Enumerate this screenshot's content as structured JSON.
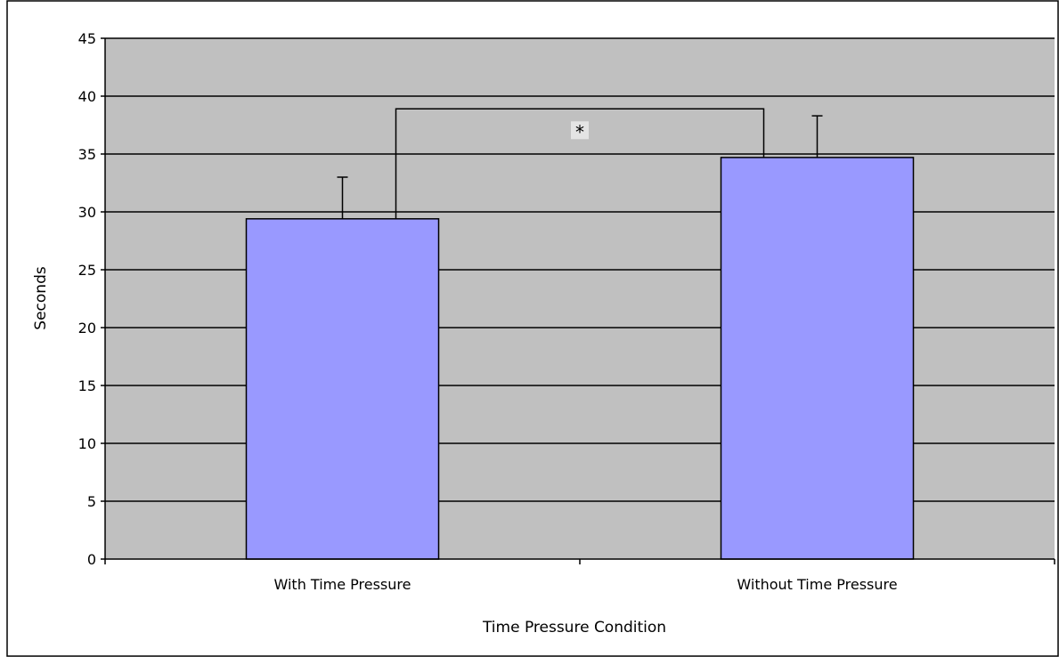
{
  "chart_data": {
    "type": "bar",
    "title": "",
    "xlabel": "Time Pressure Condition",
    "ylabel": "Seconds",
    "categories": [
      "With Time Pressure",
      "Without Time Pressure"
    ],
    "series": [
      {
        "values": [
          29.4,
          34.7
        ],
        "error": [
          3.6,
          3.6
        ]
      }
    ],
    "ylim": [
      0,
      45
    ],
    "yticks": [
      0,
      5,
      10,
      15,
      20,
      25,
      30,
      35,
      40,
      45
    ],
    "grid": true,
    "legend": "none",
    "annotation": {
      "text": "*",
      "between": [
        0,
        1
      ],
      "at_value": 38.9
    },
    "colors": {
      "bar": "#9999ff",
      "plot_background": "#c0c0c0",
      "gridline": "#000000",
      "page_background": "#ffffff"
    }
  }
}
